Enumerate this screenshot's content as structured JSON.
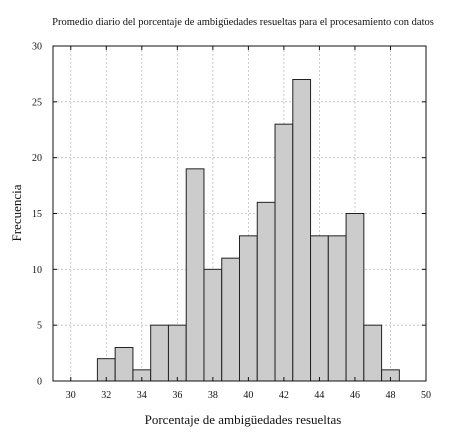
{
  "chart_data": {
    "type": "bar",
    "title": "Promedio diario del porcentaje de ambigüedades resueltas para el procesamiento con datos",
    "xlabel": "Porcentaje de ambigüedades resueltas",
    "ylabel": "Frecuencia",
    "xlim": [
      29,
      50
    ],
    "ylim": [
      0,
      30
    ],
    "xticks": [
      "30",
      "32",
      "34",
      "36",
      "38",
      "40",
      "42",
      "44",
      "46",
      "48",
      "50"
    ],
    "yticks": [
      "0",
      "5",
      "10",
      "15",
      "20",
      "25",
      "30"
    ],
    "bin_width": 1,
    "bins": [
      {
        "x0": 31.5,
        "value": 2
      },
      {
        "x0": 32.5,
        "value": 3
      },
      {
        "x0": 33.5,
        "value": 1
      },
      {
        "x0": 34.5,
        "value": 5
      },
      {
        "x0": 35.5,
        "value": 5
      },
      {
        "x0": 36.5,
        "value": 19
      },
      {
        "x0": 37.5,
        "value": 10
      },
      {
        "x0": 38.5,
        "value": 11
      },
      {
        "x0": 39.5,
        "value": 13
      },
      {
        "x0": 40.5,
        "value": 16
      },
      {
        "x0": 41.5,
        "value": 23
      },
      {
        "x0": 42.5,
        "value": 27
      },
      {
        "x0": 43.5,
        "value": 13
      },
      {
        "x0": 44.5,
        "value": 13
      },
      {
        "x0": 45.5,
        "value": 15
      },
      {
        "x0": 46.5,
        "value": 5
      },
      {
        "x0": 47.5,
        "value": 1
      }
    ],
    "grid": true
  }
}
